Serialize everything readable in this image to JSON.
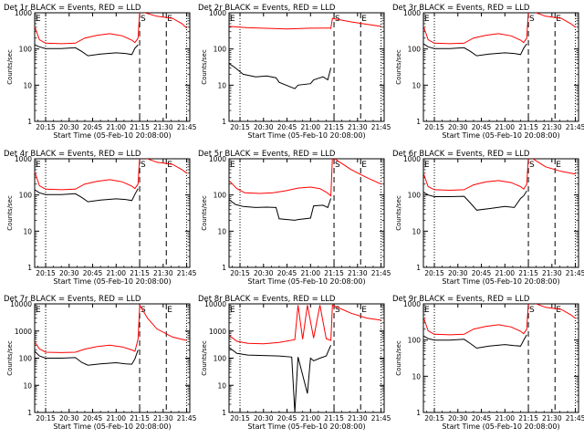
{
  "chart_data": [
    {
      "type": "line",
      "title": "Det 1r BLACK = Events, RED = LLD",
      "xlabel": "Start Time (05-Feb-10 20:08:00)",
      "ylabel": "Counts/sec",
      "y_scale": "log",
      "ylim": [
        1,
        1000
      ],
      "y_ticks": [
        "1",
        "10",
        "100",
        "1000"
      ],
      "x_ticks": [
        "20:15",
        "20:30",
        "20:45",
        "21:00",
        "21:15",
        "21:30",
        "21:45"
      ],
      "markers": [
        {
          "label": "S",
          "x": "21:15"
        },
        {
          "label": "E",
          "x": "21:32"
        }
      ],
      "series": [
        {
          "name": "Events",
          "color": "#000000",
          "x": [
            "20:08",
            "20:11",
            "20:15",
            "20:25",
            "20:34",
            "20:38",
            "20:42",
            "20:50",
            "21:00",
            "21:06",
            "21:10",
            "21:12",
            "21:14"
          ],
          "y": [
            130,
            115,
            103,
            103,
            108,
            86,
            65,
            72,
            78,
            75,
            70,
            105,
            130
          ]
        },
        {
          "name": "LLD",
          "color": "#ff0000",
          "x": [
            "20:08",
            "20:11",
            "20:15",
            "20:25",
            "20:34",
            "20:40",
            "20:48",
            "20:56",
            "21:04",
            "21:10",
            "21:12",
            "21:14",
            "21:15",
            "21:26",
            "21:36",
            "21:42",
            "21:45"
          ],
          "y": [
            420,
            180,
            145,
            140,
            145,
            200,
            240,
            265,
            230,
            175,
            150,
            200,
            1100,
            800,
            700,
            500,
            380
          ]
        }
      ]
    },
    {
      "type": "line",
      "title": "Det 2r BLACK = Events, RED = LLD",
      "xlabel": "Start Time (05-Feb-10 20:08:00)",
      "ylabel": "Counts/sec",
      "y_scale": "log",
      "ylim": [
        1,
        1000
      ],
      "y_ticks": [
        "1",
        "10",
        "100",
        "1000"
      ],
      "x_ticks": [
        "20:15",
        "20:30",
        "20:45",
        "21:00",
        "21:15",
        "21:30",
        "21:45"
      ],
      "markers": [
        {
          "label": "S",
          "x": "21:15"
        },
        {
          "label": "E",
          "x": "21:32"
        }
      ],
      "series": [
        {
          "name": "Events",
          "color": "#000000",
          "x": [
            "20:08",
            "20:12",
            "20:17",
            "20:25",
            "20:32",
            "20:38",
            "20:40",
            "20:50",
            "20:52",
            "21:00",
            "21:02",
            "21:08",
            "21:11",
            "21:13"
          ],
          "y": [
            40,
            30,
            20,
            17,
            18,
            16,
            12,
            8,
            10,
            11,
            14,
            17,
            14,
            30
          ]
        },
        {
          "name": "LLD",
          "color": "#ff0000",
          "x": [
            "20:08",
            "20:20",
            "20:34",
            "20:45",
            "21:00",
            "21:12",
            "21:13",
            "21:14",
            "21:26",
            "21:36",
            "21:45"
          ],
          "y": [
            420,
            385,
            370,
            355,
            375,
            380,
            370,
            700,
            560,
            480,
            420
          ]
        }
      ]
    },
    {
      "type": "line",
      "title": "Det 3r BLACK = Events, RED = LLD",
      "xlabel": "Start Time (05-Feb-10 20:08:00)",
      "ylabel": "Counts/sec",
      "y_scale": "log",
      "ylim": [
        1,
        1000
      ],
      "y_ticks": [
        "1",
        "10",
        "100",
        "1000"
      ],
      "x_ticks": [
        "20:15",
        "20:30",
        "20:45",
        "21:00",
        "21:15",
        "21:30",
        "21:45"
      ],
      "markers": [
        {
          "label": "S",
          "x": "21:15"
        },
        {
          "label": "E",
          "x": "21:32"
        }
      ],
      "series": [
        {
          "name": "Events",
          "color": "#000000",
          "x": [
            "20:08",
            "20:11",
            "20:15",
            "20:25",
            "20:34",
            "20:38",
            "20:42",
            "20:50",
            "21:00",
            "21:06",
            "21:10",
            "21:12",
            "21:14"
          ],
          "y": [
            140,
            115,
            103,
            103,
            108,
            86,
            65,
            72,
            78,
            75,
            70,
            105,
            140
          ]
        },
        {
          "name": "LLD",
          "color": "#ff0000",
          "x": [
            "20:08",
            "20:11",
            "20:15",
            "20:25",
            "20:34",
            "20:40",
            "20:48",
            "20:56",
            "21:04",
            "21:10",
            "21:12",
            "21:14",
            "21:15",
            "21:26",
            "21:36",
            "21:42",
            "21:45"
          ],
          "y": [
            430,
            180,
            145,
            140,
            145,
            200,
            240,
            265,
            230,
            175,
            150,
            200,
            1200,
            800,
            700,
            500,
            400
          ]
        }
      ]
    },
    {
      "type": "line",
      "title": "Det 4r BLACK = Events, RED = LLD",
      "xlabel": "Start Time (05-Feb-10 20:08:00)",
      "ylabel": "Counts/sec",
      "y_scale": "log",
      "ylim": [
        1,
        1000
      ],
      "y_ticks": [
        "1",
        "10",
        "100",
        "1000"
      ],
      "x_ticks": [
        "20:15",
        "20:30",
        "20:45",
        "21:00",
        "21:15",
        "21:30",
        "21:45"
      ],
      "markers": [
        {
          "label": "S",
          "x": "21:15"
        },
        {
          "label": "E",
          "x": "21:32"
        }
      ],
      "series": [
        {
          "name": "Events",
          "color": "#000000",
          "x": [
            "20:08",
            "20:11",
            "20:15",
            "20:25",
            "20:34",
            "20:38",
            "20:42",
            "20:50",
            "21:00",
            "21:06",
            "21:10",
            "21:12",
            "21:14"
          ],
          "y": [
            140,
            115,
            103,
            103,
            108,
            86,
            65,
            72,
            78,
            75,
            70,
            105,
            150
          ]
        },
        {
          "name": "LLD",
          "color": "#ff0000",
          "x": [
            "20:08",
            "20:11",
            "20:15",
            "20:25",
            "20:34",
            "20:40",
            "20:48",
            "20:56",
            "21:04",
            "21:10",
            "21:12",
            "21:14",
            "21:15",
            "21:26",
            "21:36",
            "21:42",
            "21:45"
          ],
          "y": [
            440,
            180,
            145,
            140,
            145,
            200,
            240,
            265,
            230,
            175,
            150,
            200,
            1200,
            800,
            700,
            500,
            400
          ]
        }
      ]
    },
    {
      "type": "line",
      "title": "Det 5r BLACK = Events, RED = LLD",
      "xlabel": "Start Time (05-Feb-10 20:08:00)",
      "ylabel": "Counts/sec",
      "y_scale": "log",
      "ylim": [
        1,
        1000
      ],
      "y_ticks": [
        "1",
        "10",
        "100",
        "1000"
      ],
      "x_ticks": [
        "20:15",
        "20:30",
        "20:45",
        "21:00",
        "21:15",
        "21:30",
        "21:45"
      ],
      "markers": [
        {
          "label": "S",
          "x": "21:15"
        },
        {
          "label": "E",
          "x": "21:32"
        }
      ],
      "series": [
        {
          "name": "Events",
          "color": "#000000",
          "x": [
            "20:08",
            "20:12",
            "20:17",
            "20:25",
            "20:32",
            "20:38",
            "20:40",
            "20:50",
            "20:52",
            "21:00",
            "21:02",
            "21:08",
            "21:11",
            "21:13"
          ],
          "y": [
            75,
            55,
            48,
            45,
            46,
            45,
            22,
            20,
            21,
            23,
            50,
            52,
            45,
            80
          ]
        },
        {
          "name": "LLD",
          "color": "#ff0000",
          "x": [
            "20:08",
            "20:13",
            "20:18",
            "20:28",
            "20:36",
            "20:44",
            "20:52",
            "21:00",
            "21:06",
            "21:10",
            "21:13",
            "21:14",
            "21:26",
            "21:36",
            "21:45"
          ],
          "y": [
            250,
            150,
            115,
            110,
            115,
            130,
            155,
            165,
            150,
            120,
            95,
            1100,
            500,
            300,
            200
          ]
        }
      ]
    },
    {
      "type": "line",
      "title": "Det 6r BLACK = Events, RED = LLD",
      "xlabel": "Start Time (05-Feb-10 20:08:00)",
      "ylabel": "Counts/sec",
      "y_scale": "log",
      "ylim": [
        1,
        1000
      ],
      "y_ticks": [
        "1",
        "10",
        "100",
        "1000"
      ],
      "x_ticks": [
        "20:15",
        "20:30",
        "20:45",
        "21:00",
        "21:15",
        "21:30",
        "21:45"
      ],
      "markers": [
        {
          "label": "S",
          "x": "21:15"
        },
        {
          "label": "E",
          "x": "21:32"
        }
      ],
      "series": [
        {
          "name": "Events",
          "color": "#000000",
          "x": [
            "20:08",
            "20:11",
            "20:15",
            "20:25",
            "20:34",
            "20:38",
            "20:42",
            "20:50",
            "21:00",
            "21:06",
            "21:10",
            "21:12",
            "21:14"
          ],
          "y": [
            120,
            100,
            90,
            90,
            92,
            60,
            38,
            42,
            48,
            45,
            80,
            95,
            130
          ]
        },
        {
          "name": "LLD",
          "color": "#ff0000",
          "x": [
            "20:08",
            "20:11",
            "20:15",
            "20:25",
            "20:34",
            "20:40",
            "20:48",
            "20:56",
            "21:04",
            "21:10",
            "21:12",
            "21:14",
            "21:15",
            "21:26",
            "21:36",
            "21:42",
            "21:45"
          ],
          "y": [
            400,
            170,
            140,
            135,
            140,
            190,
            230,
            250,
            220,
            170,
            145,
            200,
            1200,
            600,
            450,
            400,
            380
          ]
        }
      ]
    },
    {
      "type": "line",
      "title": "Det 7r BLACK = Events, RED = LLD",
      "xlabel": "Start Time (05-Feb-10 20:08:00)",
      "ylabel": "Counts/sec",
      "y_scale": "log",
      "ylim": [
        1,
        10000
      ],
      "y_ticks": [
        "1",
        "10",
        "100",
        "1000",
        "10000"
      ],
      "x_ticks": [
        "20:15",
        "20:30",
        "20:45",
        "21:00",
        "21:15",
        "21:30",
        "21:45"
      ],
      "markers": [
        {
          "label": "S",
          "x": "21:15"
        },
        {
          "label": "E",
          "x": "21:32"
        }
      ],
      "series": [
        {
          "name": "Events",
          "color": "#000000",
          "x": [
            "20:08",
            "20:11",
            "20:15",
            "20:25",
            "20:34",
            "20:38",
            "20:42",
            "20:50",
            "21:00",
            "21:06",
            "21:10",
            "21:12",
            "21:14"
          ],
          "y": [
            180,
            120,
            100,
            100,
            105,
            70,
            55,
            62,
            68,
            62,
            60,
            95,
            200
          ]
        },
        {
          "name": "LLD",
          "color": "#ff0000",
          "x": [
            "20:08",
            "20:11",
            "20:15",
            "20:25",
            "20:34",
            "20:40",
            "20:48",
            "20:56",
            "21:04",
            "21:10",
            "21:12",
            "21:14",
            "21:15",
            "21:20",
            "21:26",
            "21:36",
            "21:45"
          ],
          "y": [
            400,
            220,
            165,
            160,
            165,
            215,
            270,
            300,
            260,
            200,
            180,
            500,
            9000,
            3000,
            1200,
            600,
            450
          ]
        }
      ]
    },
    {
      "type": "line",
      "title": "Det 8r BLACK = Events, RED = LLD",
      "xlabel": "Start Time (05-Feb-10 20:08:00)",
      "ylabel": "Counts/sec",
      "y_scale": "log",
      "ylim": [
        1,
        10000
      ],
      "y_ticks": [
        "1",
        "10",
        "100",
        "1000",
        "10000"
      ],
      "x_ticks": [
        "20:15",
        "20:30",
        "20:45",
        "21:00",
        "21:15",
        "21:30",
        "21:45"
      ],
      "markers": [
        {
          "label": "S",
          "x": "21:15"
        },
        {
          "label": "E",
          "x": "21:32"
        }
      ],
      "series": [
        {
          "name": "Events",
          "color": "#000000",
          "x": [
            "20:08",
            "20:13",
            "20:20",
            "20:30",
            "20:40",
            "20:48",
            "20:50",
            "20:52",
            "20:58",
            "21:00",
            "21:02",
            "21:06",
            "21:10",
            "21:13"
          ],
          "y": [
            250,
            150,
            130,
            125,
            120,
            110,
            1,
            110,
            5,
            100,
            80,
            100,
            120,
            300
          ]
        },
        {
          "name": "LLD",
          "color": "#ff0000",
          "x": [
            "20:08",
            "20:13",
            "20:20",
            "20:30",
            "20:40",
            "20:50",
            "20:52",
            "20:55",
            "20:58",
            "21:02",
            "21:06",
            "21:10",
            "21:13",
            "21:14",
            "21:26",
            "21:36",
            "21:45"
          ],
          "y": [
            700,
            420,
            350,
            340,
            380,
            480,
            9000,
            500,
            9000,
            550,
            9000,
            520,
            450,
            9000,
            4500,
            3000,
            2500
          ]
        }
      ]
    },
    {
      "type": "line",
      "title": "Det 9r BLACK = Events, RED = LLD",
      "xlabel": "Start Time (05-Feb-10 20:08:00)",
      "ylabel": "Counts/sec",
      "y_scale": "log",
      "ylim": [
        1,
        1000
      ],
      "y_ticks": [
        "1",
        "10",
        "100",
        "1000"
      ],
      "x_ticks": [
        "20:15",
        "20:30",
        "20:45",
        "21:00",
        "21:15",
        "21:30",
        "21:45"
      ],
      "markers": [
        {
          "label": "S",
          "x": "21:15"
        },
        {
          "label": "E",
          "x": "21:32"
        }
      ],
      "series": [
        {
          "name": "Events",
          "color": "#000000",
          "x": [
            "20:08",
            "20:11",
            "20:15",
            "20:25",
            "20:34",
            "20:38",
            "20:42",
            "20:50",
            "21:00",
            "21:06",
            "21:10",
            "21:12",
            "21:14"
          ],
          "y": [
            130,
            110,
            100,
            100,
            105,
            80,
            60,
            68,
            75,
            70,
            68,
            100,
            140
          ]
        },
        {
          "name": "LLD",
          "color": "#ff0000",
          "x": [
            "20:08",
            "20:11",
            "20:15",
            "20:25",
            "20:34",
            "20:40",
            "20:48",
            "20:56",
            "21:04",
            "21:10",
            "21:12",
            "21:14",
            "21:15",
            "21:26",
            "21:36",
            "21:42",
            "21:45"
          ],
          "y": [
            430,
            180,
            145,
            140,
            145,
            200,
            240,
            265,
            230,
            175,
            150,
            200,
            1200,
            800,
            700,
            500,
            400
          ]
        }
      ]
    }
  ]
}
